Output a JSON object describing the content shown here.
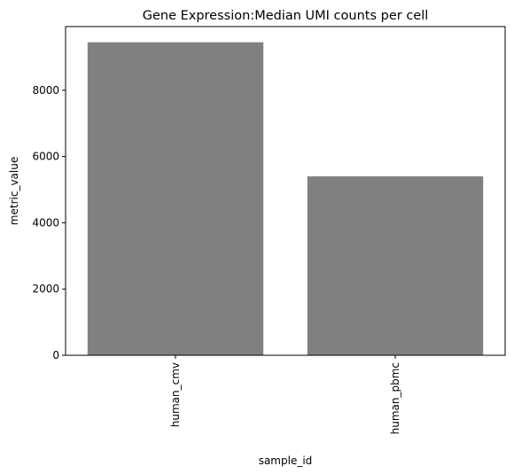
{
  "chart_data": {
    "type": "bar",
    "title": "Gene Expression:Median UMI counts per cell",
    "xlabel": "sample_id",
    "ylabel": "metric_value",
    "categories": [
      "human_cmv",
      "human_pbmc"
    ],
    "values": [
      9450,
      5400
    ],
    "ylim": [
      0,
      9922
    ],
    "yticks": [
      0,
      2000,
      4000,
      6000,
      8000
    ],
    "bar_color": "#808080",
    "grid": false,
    "legend": "none",
    "x_tick_rotation": "vertical"
  }
}
